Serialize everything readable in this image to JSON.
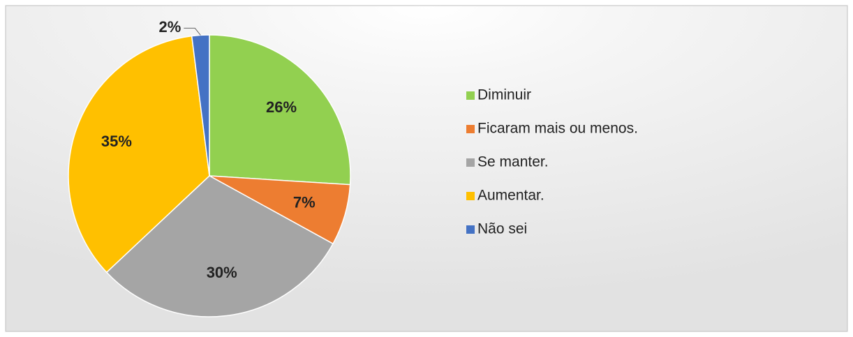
{
  "chart_data": {
    "type": "pie",
    "categories": [
      "Diminuir",
      "Ficaram mais ou menos.",
      "Se manter.",
      "Aumentar.",
      "Não sei"
    ],
    "values": [
      26,
      7,
      30,
      35,
      2
    ],
    "value_labels": [
      "26%",
      "7%",
      "30%",
      "35%",
      "2%"
    ],
    "colors": [
      "#92d050",
      "#ed7d31",
      "#a5a5a5",
      "#ffc000",
      "#4472c4"
    ],
    "legend": "right"
  }
}
